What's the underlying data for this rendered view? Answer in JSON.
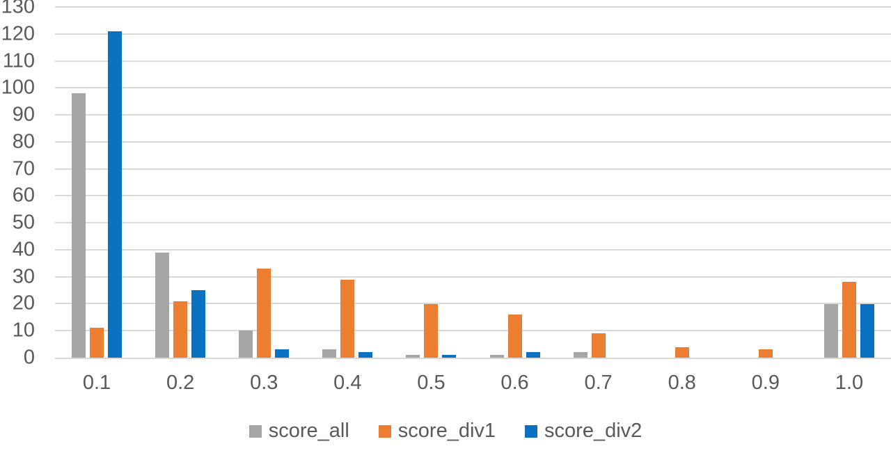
{
  "chart_data": {
    "type": "bar",
    "title": "",
    "xlabel": "",
    "ylabel": "",
    "categories": [
      "0.1",
      "0.2",
      "0.3",
      "0.4",
      "0.5",
      "0.6",
      "0.7",
      "0.8",
      "0.9",
      "1.0"
    ],
    "series": [
      {
        "name": "score_all",
        "color": "#a5a5a5",
        "values": [
          98,
          39,
          10,
          3,
          1,
          1,
          2,
          0,
          0,
          20
        ]
      },
      {
        "name": "score_div1",
        "color": "#ed7d31",
        "values": [
          11,
          21,
          33,
          29,
          20,
          16,
          9,
          4,
          3,
          28
        ]
      },
      {
        "name": "score_div2",
        "color": "#0a70c0",
        "values": [
          121,
          25,
          3,
          2,
          1,
          2,
          0,
          0,
          0,
          20
        ]
      }
    ],
    "ylim": [
      0,
      130
    ],
    "ytick_step": 10,
    "yticks": [
      0,
      10,
      20,
      30,
      40,
      50,
      60,
      70,
      80,
      90,
      100,
      110,
      120,
      130
    ],
    "grid": true,
    "gridline_color": "#d9d9d9",
    "tick_label_color": "#595959",
    "legend_position": "bottom"
  }
}
